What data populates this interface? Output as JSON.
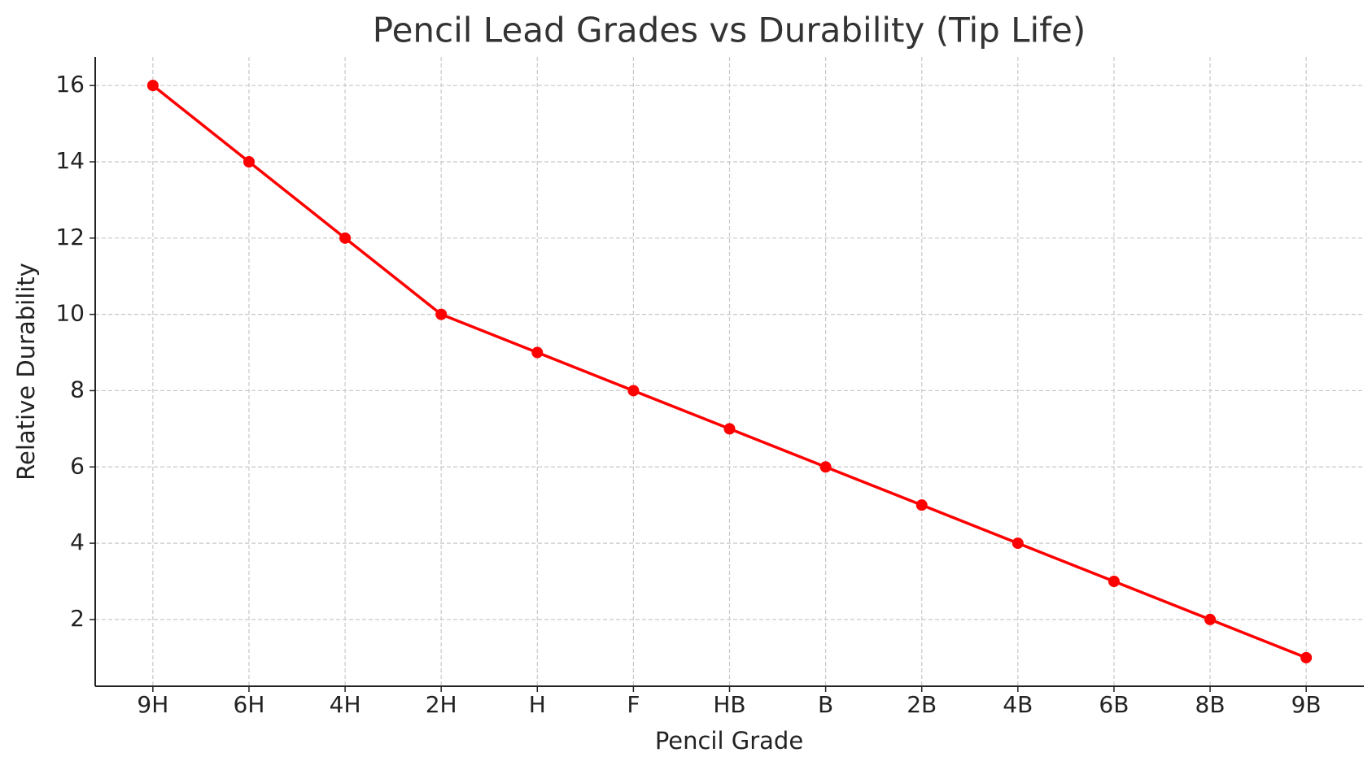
{
  "chart_data": {
    "type": "line",
    "title": "Pencil Lead Grades vs Durability (Tip Life)",
    "x_label": "Pencil Grade",
    "y_label": "Relative Durability",
    "categories": [
      "9H",
      "6H",
      "4H",
      "2H",
      "H",
      "F",
      "HB",
      "B",
      "2B",
      "4B",
      "6B",
      "8B",
      "9B"
    ],
    "values": [
      16,
      14,
      12,
      10,
      9,
      8,
      7,
      6,
      5,
      4,
      3,
      2,
      1
    ],
    "color": "#ff0000",
    "ylim": [
      0.25,
      16.75
    ],
    "yticks": [
      2,
      4,
      6,
      8,
      10,
      12,
      14,
      16
    ],
    "grid": true
  }
}
